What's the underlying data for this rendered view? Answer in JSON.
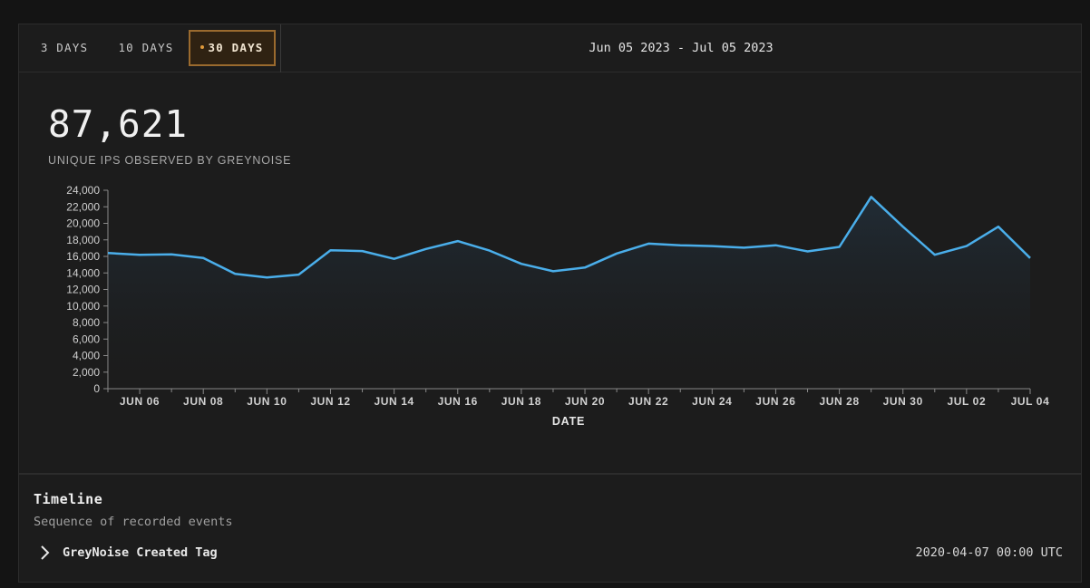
{
  "toolbar": {
    "ranges": [
      {
        "label": "3 DAYS",
        "active": false
      },
      {
        "label": "10 DAYS",
        "active": false
      },
      {
        "label": "30 DAYS",
        "active": true
      }
    ],
    "date_range": "Jun 05 2023 - Jul 05 2023",
    "active_color": "#9a6a2e"
  },
  "summary": {
    "value": "87,621",
    "caption": "UNIQUE IPS OBSERVED BY GREYNOISE"
  },
  "chart_data": {
    "type": "area",
    "xlabel": "DATE",
    "ylabel": "",
    "ylim": [
      0,
      24000
    ],
    "y_ticks": [
      "0",
      "2,000",
      "4,000",
      "6,000",
      "8,000",
      "10,000",
      "12,000",
      "14,000",
      "16,000",
      "18,000",
      "20,000",
      "22,000",
      "24,000"
    ],
    "x_ticks": [
      "JUN 06",
      "JUN 08",
      "JUN 10",
      "JUN 12",
      "JUN 14",
      "JUN 16",
      "JUN 18",
      "JUN 20",
      "JUN 22",
      "JUN 24",
      "JUN 26",
      "JUN 28",
      "JUN 30",
      "JUL 02",
      "JUL 04"
    ],
    "line_color": "#4aaeea",
    "series": [
      {
        "x": [
          "2023-06-05",
          "2023-06-06",
          "2023-06-07",
          "2023-06-08",
          "2023-06-09",
          "2023-06-10",
          "2023-06-11",
          "2023-06-12",
          "2023-06-13",
          "2023-06-14",
          "2023-06-15",
          "2023-06-16",
          "2023-06-17",
          "2023-06-18",
          "2023-06-19",
          "2023-06-20",
          "2023-06-21",
          "2023-06-22",
          "2023-06-23",
          "2023-06-24",
          "2023-06-25",
          "2023-06-26",
          "2023-06-27",
          "2023-06-28",
          "2023-06-29",
          "2023-06-30",
          "2023-07-01",
          "2023-07-02",
          "2023-07-03",
          "2023-07-04"
        ],
        "values": [
          16400,
          16200,
          16250,
          15800,
          13900,
          13450,
          13800,
          16750,
          16650,
          15700,
          16900,
          17850,
          16700,
          15100,
          14200,
          14650,
          16350,
          17550,
          17350,
          17250,
          17050,
          17350,
          16600,
          17150,
          23200,
          19600,
          16200,
          17250,
          19600,
          15800
        ]
      }
    ],
    "grid": false,
    "legend": "none"
  },
  "timeline": {
    "title": "Timeline",
    "subtitle": "Sequence of recorded events",
    "items": [
      {
        "label": "GreyNoise Created Tag",
        "time": "2020-04-07 00:00 UTC"
      }
    ]
  }
}
